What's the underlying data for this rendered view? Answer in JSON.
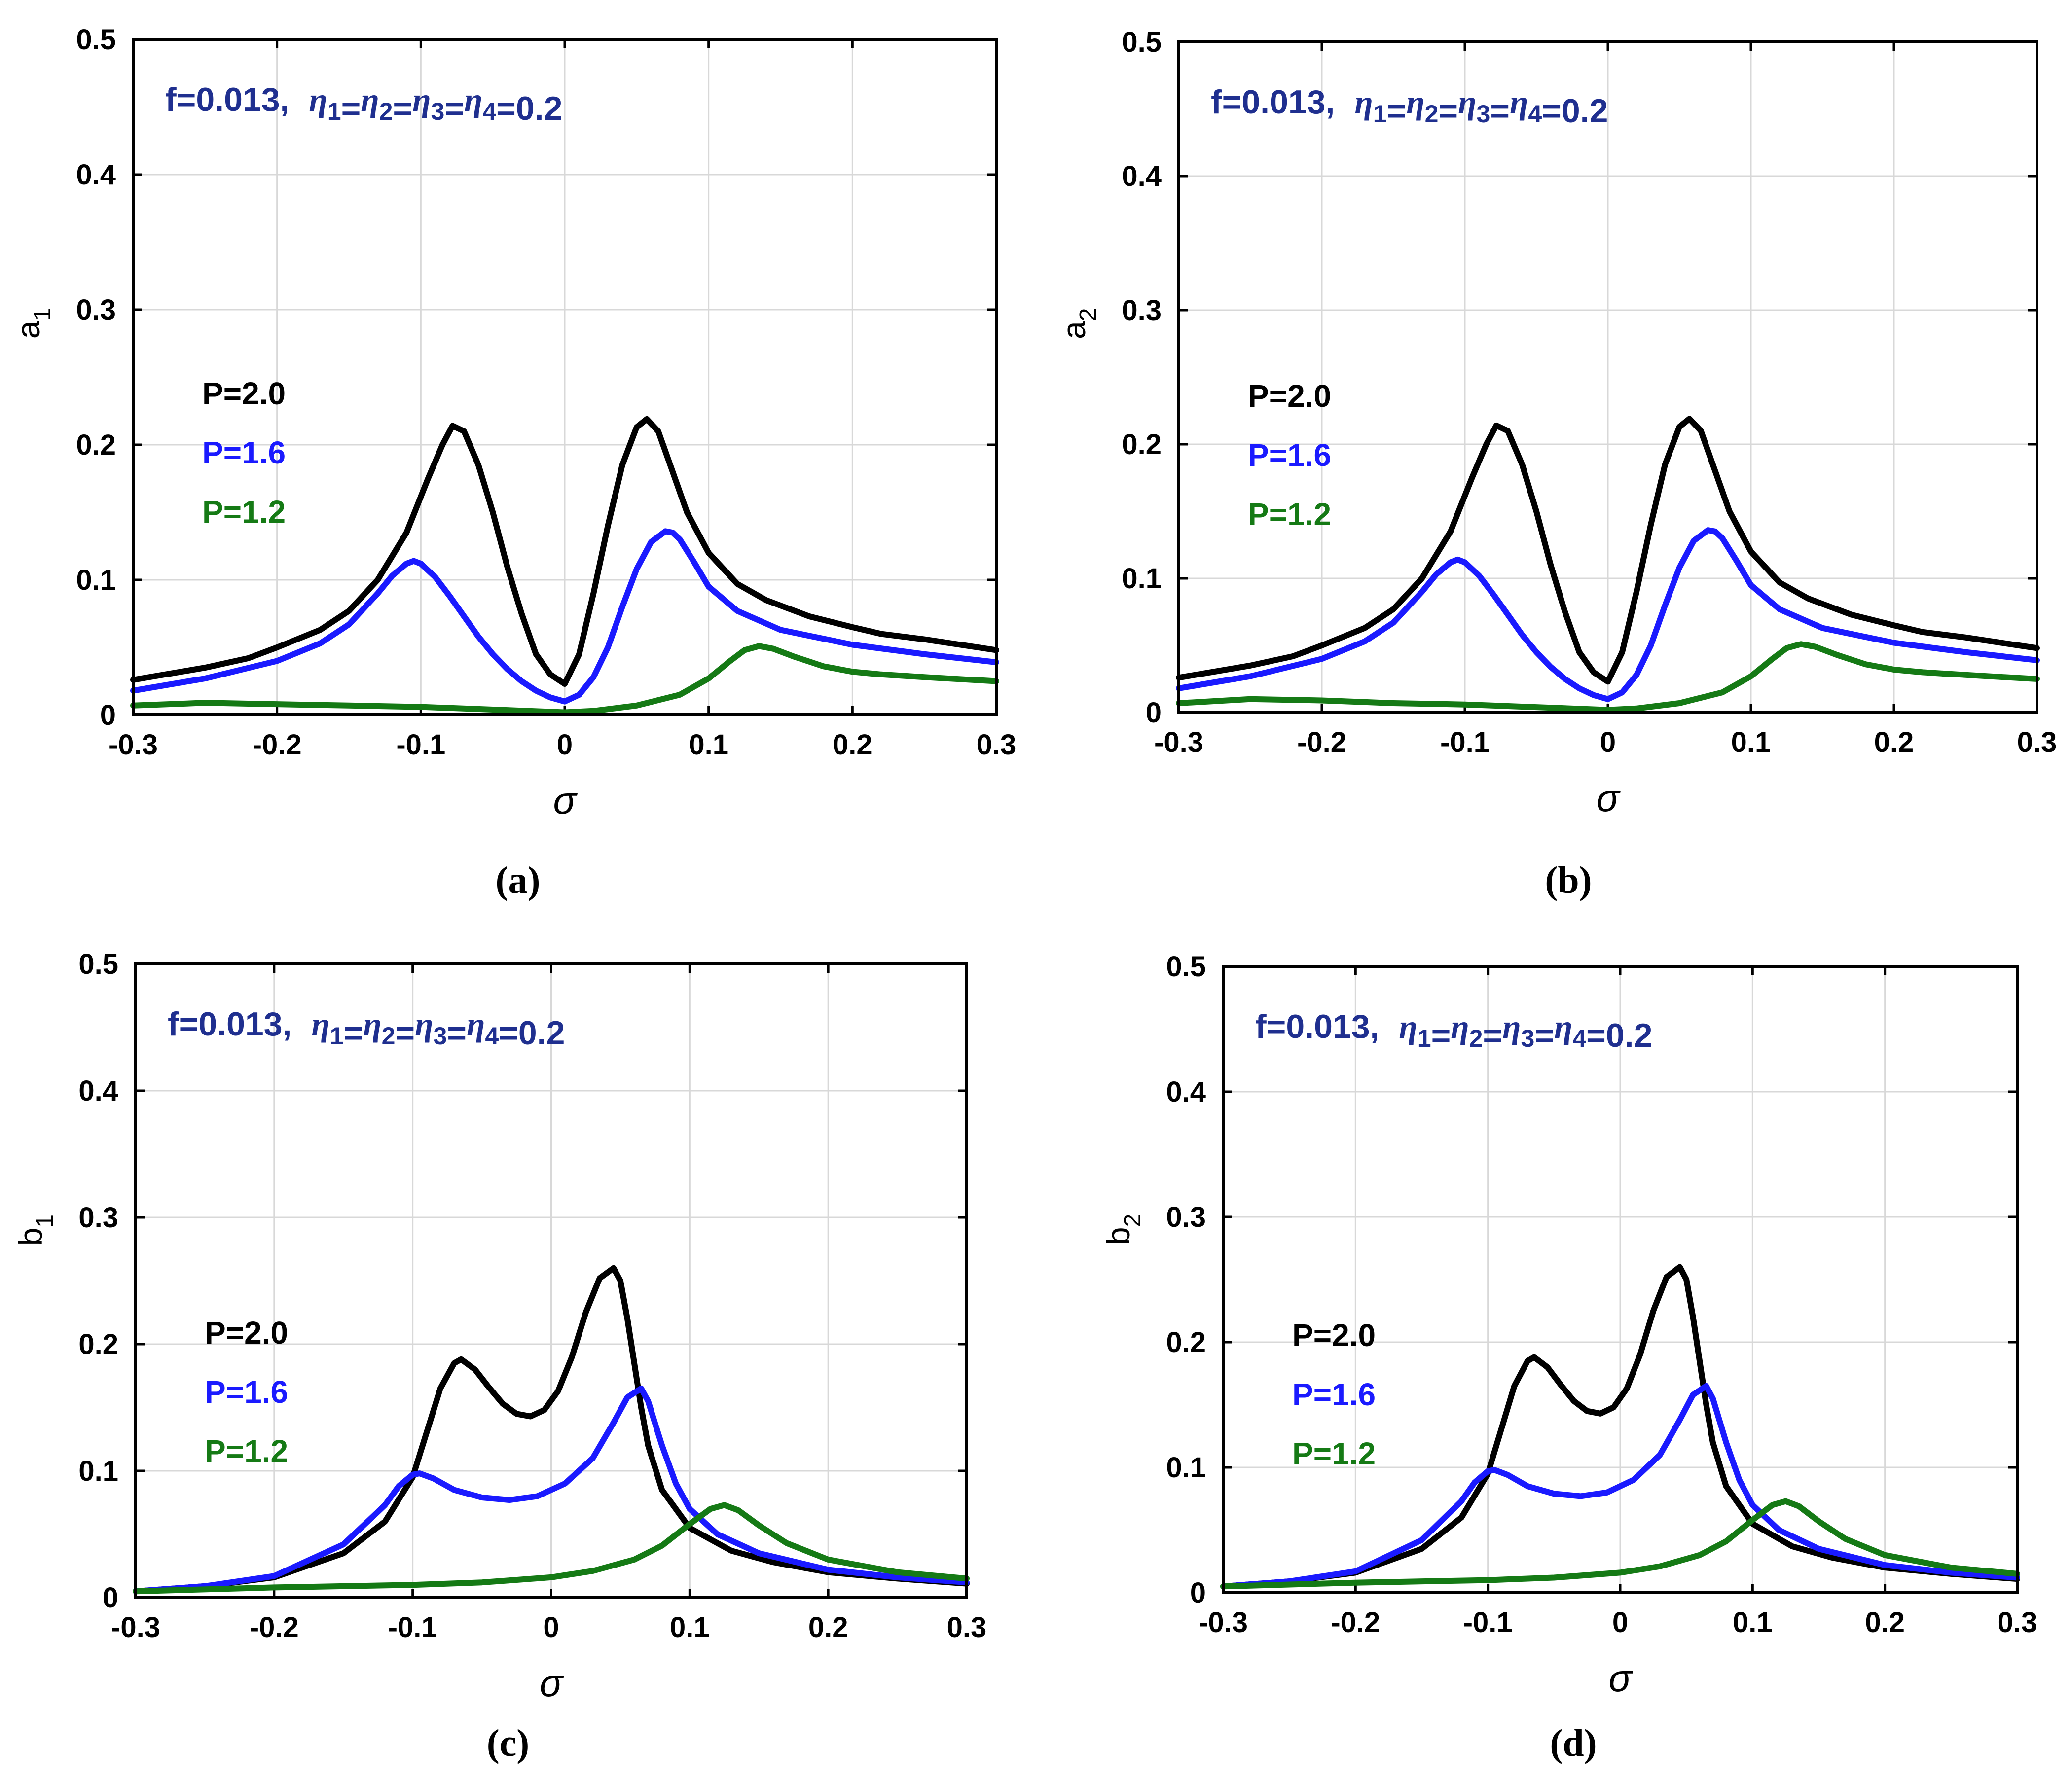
{
  "figure": {
    "captions": [
      "(a)",
      "(b)",
      "(c)",
      "(d)"
    ],
    "annotation": {
      "text_f": "f=0.013,",
      "eta_symbol": "η",
      "subscripts": [
        "1",
        "2",
        "3",
        "4"
      ],
      "eq": "=",
      "value": "0.2"
    },
    "xlabel": "σ",
    "colors": {
      "P=2.0": "#000000",
      "P=1.6": "#1a1aff",
      "P=1.2": "#157a15",
      "annotation": "#1f2f8f",
      "grid": "#d8d8d8"
    }
  },
  "chart_data": [
    {
      "panel": "a",
      "type": "line",
      "ylabel_base": "a",
      "ylabel_sub": "1",
      "xlim": [
        -0.3,
        0.3
      ],
      "ylim": [
        0,
        0.5
      ],
      "xticks": [
        "-0.3",
        "-0.2",
        "-0.1",
        "0",
        "0.1",
        "0.2",
        "0.3"
      ],
      "yticks": [
        "0",
        "0.1",
        "0.2",
        "0.3",
        "0.4",
        "0.5"
      ],
      "grid": true,
      "legend": [
        "P=2.0",
        "P=1.6",
        "P=1.2"
      ],
      "series": [
        {
          "name": "P=2.0",
          "color": "#000000",
          "x": [
            -0.3,
            -0.25,
            -0.22,
            -0.2,
            -0.17,
            -0.15,
            -0.13,
            -0.11,
            -0.095,
            -0.085,
            -0.078,
            -0.07,
            -0.06,
            -0.05,
            -0.04,
            -0.03,
            -0.02,
            -0.01,
            0.0,
            0.01,
            0.02,
            0.03,
            0.04,
            0.05,
            0.057,
            0.065,
            0.075,
            0.085,
            0.1,
            0.12,
            0.14,
            0.17,
            0.2,
            0.22,
            0.25,
            0.3
          ],
          "y": [
            0.026,
            0.035,
            0.042,
            0.05,
            0.063,
            0.077,
            0.1,
            0.135,
            0.175,
            0.2,
            0.214,
            0.21,
            0.185,
            0.15,
            0.11,
            0.075,
            0.045,
            0.03,
            0.023,
            0.045,
            0.09,
            0.14,
            0.185,
            0.213,
            0.219,
            0.21,
            0.18,
            0.15,
            0.12,
            0.097,
            0.085,
            0.073,
            0.065,
            0.06,
            0.056,
            0.048
          ]
        },
        {
          "name": "P=1.6",
          "color": "#1a1aff",
          "x": [
            -0.3,
            -0.25,
            -0.2,
            -0.17,
            -0.15,
            -0.13,
            -0.12,
            -0.11,
            -0.105,
            -0.1,
            -0.09,
            -0.08,
            -0.07,
            -0.06,
            -0.05,
            -0.04,
            -0.03,
            -0.02,
            -0.01,
            0.0,
            0.01,
            0.02,
            0.03,
            0.04,
            0.05,
            0.06,
            0.07,
            0.075,
            0.08,
            0.09,
            0.1,
            0.12,
            0.15,
            0.2,
            0.25,
            0.3
          ],
          "y": [
            0.018,
            0.027,
            0.04,
            0.053,
            0.067,
            0.09,
            0.103,
            0.112,
            0.114,
            0.112,
            0.102,
            0.088,
            0.073,
            0.058,
            0.045,
            0.034,
            0.025,
            0.018,
            0.013,
            0.01,
            0.015,
            0.028,
            0.05,
            0.08,
            0.108,
            0.128,
            0.136,
            0.135,
            0.13,
            0.113,
            0.095,
            0.077,
            0.063,
            0.052,
            0.045,
            0.039
          ]
        },
        {
          "name": "P=1.2",
          "color": "#157a15",
          "x": [
            -0.3,
            -0.25,
            -0.2,
            -0.15,
            -0.1,
            -0.05,
            0.0,
            0.02,
            0.05,
            0.08,
            0.1,
            0.115,
            0.125,
            0.135,
            0.145,
            0.16,
            0.18,
            0.2,
            0.22,
            0.25,
            0.3
          ],
          "y": [
            0.007,
            0.009,
            0.008,
            0.007,
            0.006,
            0.004,
            0.002,
            0.003,
            0.007,
            0.015,
            0.027,
            0.04,
            0.048,
            0.051,
            0.049,
            0.043,
            0.036,
            0.032,
            0.03,
            0.028,
            0.025
          ]
        }
      ]
    },
    {
      "panel": "b",
      "type": "line",
      "ylabel_base": "a",
      "ylabel_sub": "2",
      "xlim": [
        -0.3,
        0.3
      ],
      "ylim": [
        0,
        0.5
      ],
      "xticks": [
        "-0.3",
        "-0.2",
        "-0.1",
        "0",
        "0.1",
        "0.2",
        "0.3"
      ],
      "yticks": [
        "0",
        "0.1",
        "0.2",
        "0.3",
        "0.4",
        "0.5"
      ],
      "grid": true,
      "legend": [
        "P=2.0",
        "P=1.6",
        "P=1.2"
      ],
      "series": [
        {
          "name": "P=2.0",
          "color": "#000000",
          "x": [
            -0.3,
            -0.25,
            -0.22,
            -0.2,
            -0.17,
            -0.15,
            -0.13,
            -0.11,
            -0.095,
            -0.085,
            -0.078,
            -0.07,
            -0.06,
            -0.05,
            -0.04,
            -0.03,
            -0.02,
            -0.01,
            0.0,
            0.01,
            0.02,
            0.03,
            0.04,
            0.05,
            0.057,
            0.065,
            0.075,
            0.085,
            0.1,
            0.12,
            0.14,
            0.17,
            0.2,
            0.22,
            0.25,
            0.3
          ],
          "y": [
            0.026,
            0.035,
            0.042,
            0.05,
            0.063,
            0.077,
            0.1,
            0.135,
            0.175,
            0.2,
            0.214,
            0.21,
            0.185,
            0.15,
            0.11,
            0.075,
            0.045,
            0.03,
            0.023,
            0.045,
            0.09,
            0.14,
            0.185,
            0.213,
            0.219,
            0.21,
            0.18,
            0.15,
            0.12,
            0.097,
            0.085,
            0.073,
            0.065,
            0.06,
            0.056,
            0.048
          ]
        },
        {
          "name": "P=1.6",
          "color": "#1a1aff",
          "x": [
            -0.3,
            -0.25,
            -0.2,
            -0.17,
            -0.15,
            -0.13,
            -0.12,
            -0.11,
            -0.105,
            -0.1,
            -0.09,
            -0.08,
            -0.07,
            -0.06,
            -0.05,
            -0.04,
            -0.03,
            -0.02,
            -0.01,
            0.0,
            0.01,
            0.02,
            0.03,
            0.04,
            0.05,
            0.06,
            0.07,
            0.075,
            0.08,
            0.09,
            0.1,
            0.12,
            0.15,
            0.2,
            0.25,
            0.3
          ],
          "y": [
            0.018,
            0.027,
            0.04,
            0.053,
            0.067,
            0.09,
            0.103,
            0.112,
            0.114,
            0.112,
            0.102,
            0.088,
            0.073,
            0.058,
            0.045,
            0.034,
            0.025,
            0.018,
            0.013,
            0.01,
            0.015,
            0.028,
            0.05,
            0.08,
            0.108,
            0.128,
            0.136,
            0.135,
            0.13,
            0.113,
            0.095,
            0.077,
            0.063,
            0.052,
            0.045,
            0.039
          ]
        },
        {
          "name": "P=1.2",
          "color": "#157a15",
          "x": [
            -0.3,
            -0.25,
            -0.2,
            -0.15,
            -0.1,
            -0.05,
            0.0,
            0.02,
            0.05,
            0.08,
            0.1,
            0.115,
            0.125,
            0.135,
            0.145,
            0.16,
            0.18,
            0.2,
            0.22,
            0.25,
            0.3
          ],
          "y": [
            0.007,
            0.01,
            0.009,
            0.007,
            0.006,
            0.004,
            0.002,
            0.003,
            0.007,
            0.015,
            0.027,
            0.04,
            0.048,
            0.051,
            0.049,
            0.043,
            0.036,
            0.032,
            0.03,
            0.028,
            0.025
          ]
        }
      ]
    },
    {
      "panel": "c",
      "type": "line",
      "ylabel_base": "b",
      "ylabel_sub": "1",
      "xlim": [
        -0.3,
        0.3
      ],
      "ylim": [
        0,
        0.5
      ],
      "xticks": [
        "-0.3",
        "-0.2",
        "-0.1",
        "0",
        "0.1",
        "0.2",
        "0.3"
      ],
      "yticks": [
        "0",
        "0.1",
        "0.2",
        "0.3",
        "0.4",
        "0.5"
      ],
      "grid": true,
      "legend": [
        "P=2.0",
        "P=1.6",
        "P=1.2"
      ],
      "series": [
        {
          "name": "P=2.0",
          "color": "#000000",
          "x": [
            -0.3,
            -0.25,
            -0.2,
            -0.15,
            -0.12,
            -0.1,
            -0.09,
            -0.08,
            -0.07,
            -0.065,
            -0.055,
            -0.045,
            -0.035,
            -0.025,
            -0.015,
            -0.005,
            0.005,
            0.015,
            0.025,
            0.035,
            0.045,
            0.05,
            0.055,
            0.06,
            0.065,
            0.07,
            0.08,
            0.1,
            0.13,
            0.16,
            0.2,
            0.25,
            0.3
          ],
          "y": [
            0.005,
            0.009,
            0.016,
            0.035,
            0.06,
            0.095,
            0.13,
            0.165,
            0.185,
            0.188,
            0.18,
            0.166,
            0.153,
            0.145,
            0.143,
            0.148,
            0.163,
            0.19,
            0.225,
            0.252,
            0.26,
            0.25,
            0.22,
            0.185,
            0.15,
            0.12,
            0.085,
            0.055,
            0.037,
            0.028,
            0.02,
            0.015,
            0.011
          ]
        },
        {
          "name": "P=1.6",
          "color": "#1a1aff",
          "x": [
            -0.3,
            -0.25,
            -0.2,
            -0.15,
            -0.12,
            -0.11,
            -0.1,
            -0.095,
            -0.085,
            -0.07,
            -0.05,
            -0.03,
            -0.01,
            0.01,
            0.03,
            0.045,
            0.055,
            0.065,
            0.07,
            0.08,
            0.09,
            0.1,
            0.12,
            0.15,
            0.2,
            0.25,
            0.3
          ],
          "y": [
            0.005,
            0.009,
            0.017,
            0.042,
            0.073,
            0.088,
            0.097,
            0.098,
            0.094,
            0.085,
            0.079,
            0.077,
            0.08,
            0.09,
            0.11,
            0.138,
            0.158,
            0.165,
            0.155,
            0.12,
            0.09,
            0.07,
            0.05,
            0.035,
            0.022,
            0.016,
            0.012
          ]
        },
        {
          "name": "P=1.2",
          "color": "#157a15",
          "x": [
            -0.3,
            -0.2,
            -0.1,
            -0.05,
            0.0,
            0.03,
            0.06,
            0.08,
            0.1,
            0.115,
            0.125,
            0.135,
            0.15,
            0.17,
            0.2,
            0.25,
            0.3
          ],
          "y": [
            0.005,
            0.008,
            0.01,
            0.012,
            0.016,
            0.021,
            0.03,
            0.041,
            0.058,
            0.07,
            0.073,
            0.069,
            0.057,
            0.043,
            0.03,
            0.02,
            0.015
          ]
        }
      ]
    },
    {
      "panel": "d",
      "type": "line",
      "ylabel_base": "b",
      "ylabel_sub": "2",
      "xlim": [
        -0.3,
        0.3
      ],
      "ylim": [
        0,
        0.5
      ],
      "xticks": [
        "-0.3",
        "-0.2",
        "-0.1",
        "0",
        "0.1",
        "0.2",
        "0.3"
      ],
      "yticks": [
        "0",
        "0.1",
        "0.2",
        "0.3",
        "0.4",
        "0.5"
      ],
      "grid": true,
      "legend": [
        "P=2.0",
        "P=1.6",
        "P=1.2"
      ],
      "series": [
        {
          "name": "P=2.0",
          "color": "#000000",
          "x": [
            -0.3,
            -0.25,
            -0.2,
            -0.15,
            -0.12,
            -0.1,
            -0.09,
            -0.08,
            -0.07,
            -0.065,
            -0.055,
            -0.045,
            -0.035,
            -0.025,
            -0.015,
            -0.005,
            0.005,
            0.015,
            0.025,
            0.035,
            0.045,
            0.05,
            0.055,
            0.06,
            0.065,
            0.07,
            0.08,
            0.1,
            0.13,
            0.16,
            0.2,
            0.25,
            0.3
          ],
          "y": [
            0.005,
            0.009,
            0.016,
            0.035,
            0.06,
            0.095,
            0.13,
            0.165,
            0.185,
            0.188,
            0.18,
            0.166,
            0.153,
            0.145,
            0.143,
            0.148,
            0.163,
            0.19,
            0.225,
            0.252,
            0.26,
            0.25,
            0.22,
            0.185,
            0.15,
            0.12,
            0.085,
            0.055,
            0.037,
            0.028,
            0.02,
            0.015,
            0.011
          ]
        },
        {
          "name": "P=1.6",
          "color": "#1a1aff",
          "x": [
            -0.3,
            -0.25,
            -0.2,
            -0.15,
            -0.12,
            -0.11,
            -0.1,
            -0.095,
            -0.085,
            -0.07,
            -0.05,
            -0.03,
            -0.01,
            0.01,
            0.03,
            0.045,
            0.055,
            0.065,
            0.07,
            0.08,
            0.09,
            0.1,
            0.12,
            0.15,
            0.2,
            0.25,
            0.3
          ],
          "y": [
            0.005,
            0.009,
            0.017,
            0.042,
            0.073,
            0.088,
            0.097,
            0.098,
            0.094,
            0.085,
            0.079,
            0.077,
            0.08,
            0.09,
            0.11,
            0.138,
            0.158,
            0.165,
            0.155,
            0.12,
            0.09,
            0.07,
            0.05,
            0.035,
            0.022,
            0.016,
            0.012
          ]
        },
        {
          "name": "P=1.2",
          "color": "#157a15",
          "x": [
            -0.3,
            -0.2,
            -0.1,
            -0.05,
            0.0,
            0.03,
            0.06,
            0.08,
            0.1,
            0.115,
            0.125,
            0.135,
            0.15,
            0.17,
            0.2,
            0.25,
            0.3
          ],
          "y": [
            0.005,
            0.008,
            0.01,
            0.012,
            0.016,
            0.021,
            0.03,
            0.041,
            0.058,
            0.07,
            0.073,
            0.069,
            0.057,
            0.043,
            0.03,
            0.02,
            0.015
          ]
        }
      ]
    }
  ]
}
